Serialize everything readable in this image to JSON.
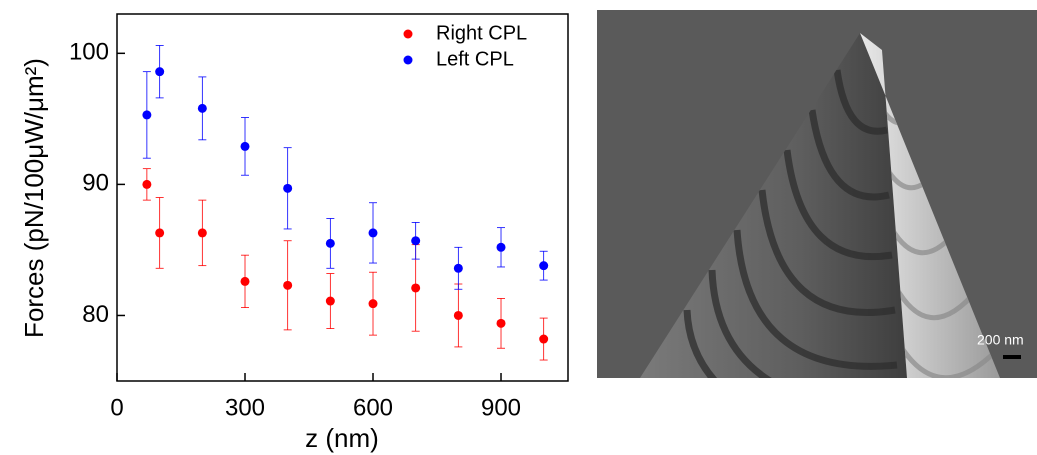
{
  "chart_data": {
    "type": "scatter",
    "x_label": "z (nm)",
    "y_label": "Forces (pN/100μW/μm²)",
    "x": [
      70,
      100,
      200,
      300,
      400,
      500,
      600,
      700,
      800,
      900,
      1000
    ],
    "series": [
      {
        "name": "Right CPL",
        "color": "#ff0000",
        "values": [
          90.0,
          86.3,
          86.3,
          82.6,
          82.3,
          81.1,
          80.9,
          82.1,
          80.0,
          79.4,
          78.2
        ],
        "errors": [
          1.2,
          2.7,
          2.5,
          2.0,
          3.4,
          2.1,
          2.4,
          3.3,
          2.4,
          1.9,
          1.6
        ]
      },
      {
        "name": "Left CPL",
        "color": "#0000ff",
        "values": [
          95.3,
          98.6,
          95.8,
          92.9,
          89.7,
          85.5,
          86.3,
          85.7,
          83.6,
          85.2,
          83.8
        ],
        "errors": [
          3.3,
          2.0,
          2.4,
          2.2,
          3.1,
          1.9,
          2.3,
          1.4,
          1.6,
          1.5,
          1.1
        ]
      }
    ],
    "xlim": [
      0,
      1057
    ],
    "ylim": [
      75,
      103
    ],
    "xticks": [
      0,
      300,
      600,
      900
    ],
    "yticks": [
      80,
      90,
      100
    ],
    "legend": "upper-right"
  },
  "image": {
    "scale_bar_label": "200 nm"
  }
}
